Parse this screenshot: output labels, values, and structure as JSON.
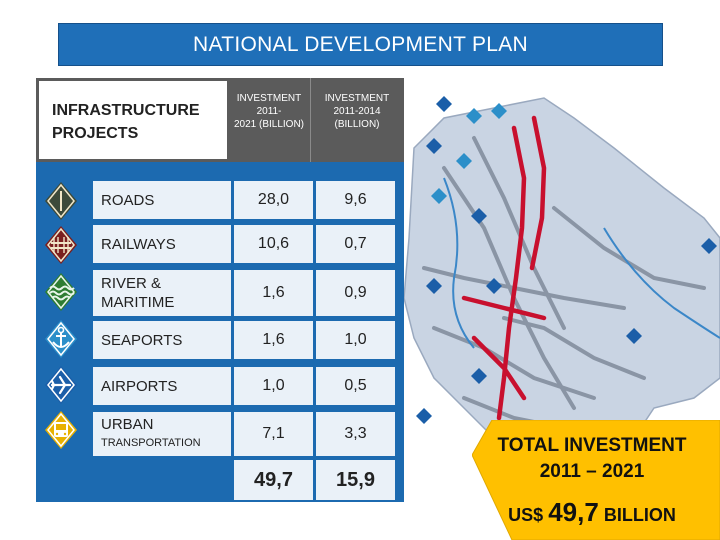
{
  "title": "NATIONAL DEVELOPMENT PLAN",
  "table": {
    "header": {
      "projects_l1": "INFRASTRUCTURE",
      "projects_l2": "PROJECTS",
      "col1_l1": "INVESTMENT 2011-",
      "col1_l2": "2021 (BILLION)",
      "col2_l1": "INVESTMENT",
      "col2_l2": "2011-2014",
      "col2_l3": "(BILLION)"
    },
    "rows": [
      {
        "name_l1": "ROADS",
        "name_l2": "",
        "v1": "28,0",
        "v2": "9,6",
        "icon": "road-sign-icon"
      },
      {
        "name_l1": "RAILWAYS",
        "name_l2": "",
        "v1": "10,6",
        "v2": "0,7",
        "icon": "railway-sign-icon"
      },
      {
        "name_l1": "RIVER &",
        "name_l2": "MARITIME",
        "v1": "1,6",
        "v2": "0,9",
        "icon": "river-sign-icon"
      },
      {
        "name_l1": "SEAPORTS",
        "name_l2": "",
        "v1": "1,6",
        "v2": "1,0",
        "icon": "anchor-sign-icon"
      },
      {
        "name_l1": "AIRPORTS",
        "name_l2": "",
        "v1": "1,0",
        "v2": "0,5",
        "icon": "airplane-sign-icon"
      },
      {
        "name_l1": "URBAN",
        "name_l2": "TRANSPORTATION",
        "v1": "7,1",
        "v2": "3,3",
        "icon": "bus-sign-icon"
      }
    ],
    "totals": {
      "v1": "49,7",
      "v2": "15,9"
    }
  },
  "callout": {
    "line1": "TOTAL INVESTMENT",
    "line2": "2011 – 2021",
    "line3_prefix": "US$",
    "line3_value": "49,7",
    "line3_suffix": "BILLION"
  },
  "colors": {
    "banner": "#1f6fb8",
    "table_bg": "#1c6ab0",
    "header_bg": "#5b5b5b",
    "cell_bg": "#eaf1f8",
    "callout": "#ffc000",
    "road_lines": "#c8102e",
    "map_land": "#c9d4e3"
  }
}
